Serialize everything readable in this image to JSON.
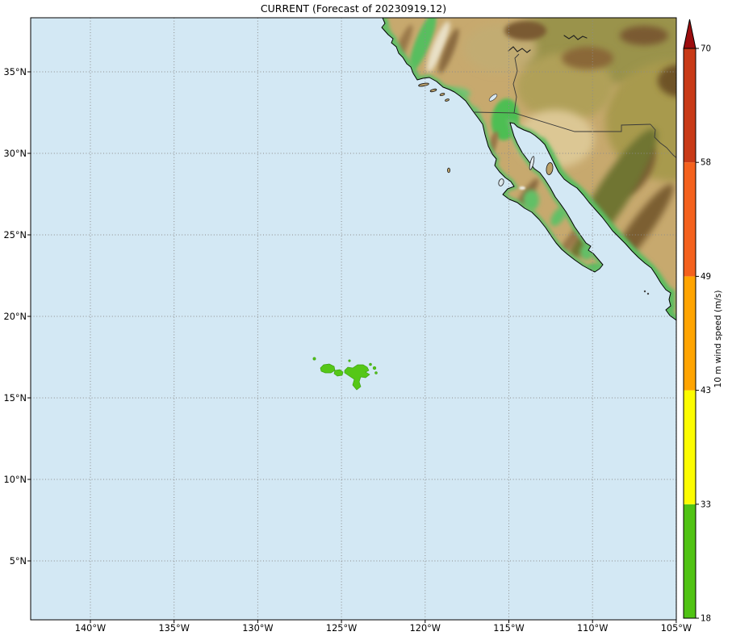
{
  "title": "CURRENT (Forecast of 20230919.12)",
  "colors": {
    "ocean": "#D3E8F4",
    "land_base": "#C7A96E",
    "swath_green": "#55C717",
    "gridline": "#8C8C8C"
  },
  "map": {
    "x_ticks": [
      {
        "label": "140°W",
        "lon": 140
      },
      {
        "label": "135°W",
        "lon": 135
      },
      {
        "label": "130°W",
        "lon": 130
      },
      {
        "label": "125°W",
        "lon": 125
      },
      {
        "label": "120°W",
        "lon": 120
      },
      {
        "label": "115°W",
        "lon": 115
      },
      {
        "label": "110°W",
        "lon": 110
      },
      {
        "label": "105°W",
        "lon": 105
      }
    ],
    "y_ticks": [
      {
        "label": "35°N",
        "lat": 35
      },
      {
        "label": "30°N",
        "lat": 30
      },
      {
        "label": "25°N",
        "lat": 25
      },
      {
        "label": "20°N",
        "lat": 20
      },
      {
        "label": "15°N",
        "lat": 15
      },
      {
        "label": "10°N",
        "lat": 10
      },
      {
        "label": "5°N",
        "lat": 5
      }
    ]
  },
  "colorbar": {
    "label": "10 m wind speed (m/s)",
    "ticks": [
      "18",
      "33",
      "43",
      "49",
      "58",
      "70"
    ],
    "segments": [
      {
        "from": 18,
        "to": 33,
        "color": "#50C314"
      },
      {
        "from": 33,
        "to": 43,
        "color": "#FCFC00"
      },
      {
        "from": 43,
        "to": 49,
        "color": "#FFA401"
      },
      {
        "from": 49,
        "to": 58,
        "color": "#F4611D"
      },
      {
        "from": 58,
        "to": 70,
        "color": "#C83A17"
      }
    ],
    "over_color": "#9C0D0E"
  },
  "chart_data": {
    "type": "heatmap",
    "title": "CURRENT (Forecast of 20230919.12)",
    "colorbar_label": "10 m wind speed (m/s)",
    "colorbar_ticks": [
      18,
      33,
      43,
      49,
      58,
      70
    ],
    "x_axis_ticks": [
      "140°W",
      "135°W",
      "130°W",
      "125°W",
      "120°W",
      "115°W",
      "110°W",
      "105°W"
    ],
    "y_axis_ticks": [
      "35°N",
      "30°N",
      "25°N",
      "20°N",
      "15°N",
      "10°N",
      "5°N"
    ],
    "lon_range_deg_west": [
      143.6,
      104.9
    ],
    "lat_range_deg_north": [
      1.4,
      38.3
    ],
    "grid": true,
    "data_regions": [
      {
        "description": "forecast swath of 10 m wind speed in 18-33 m/s band (green patches over open Pacific)",
        "value_range_ms": [
          18,
          33
        ],
        "color": "#55C717",
        "center": {
          "lat_n": 16.6,
          "lon_w": 124.5
        },
        "lat_span_n": [
          15.6,
          17.6
        ],
        "lon_span_w": [
          126.7,
          122.8
        ]
      }
    ]
  }
}
